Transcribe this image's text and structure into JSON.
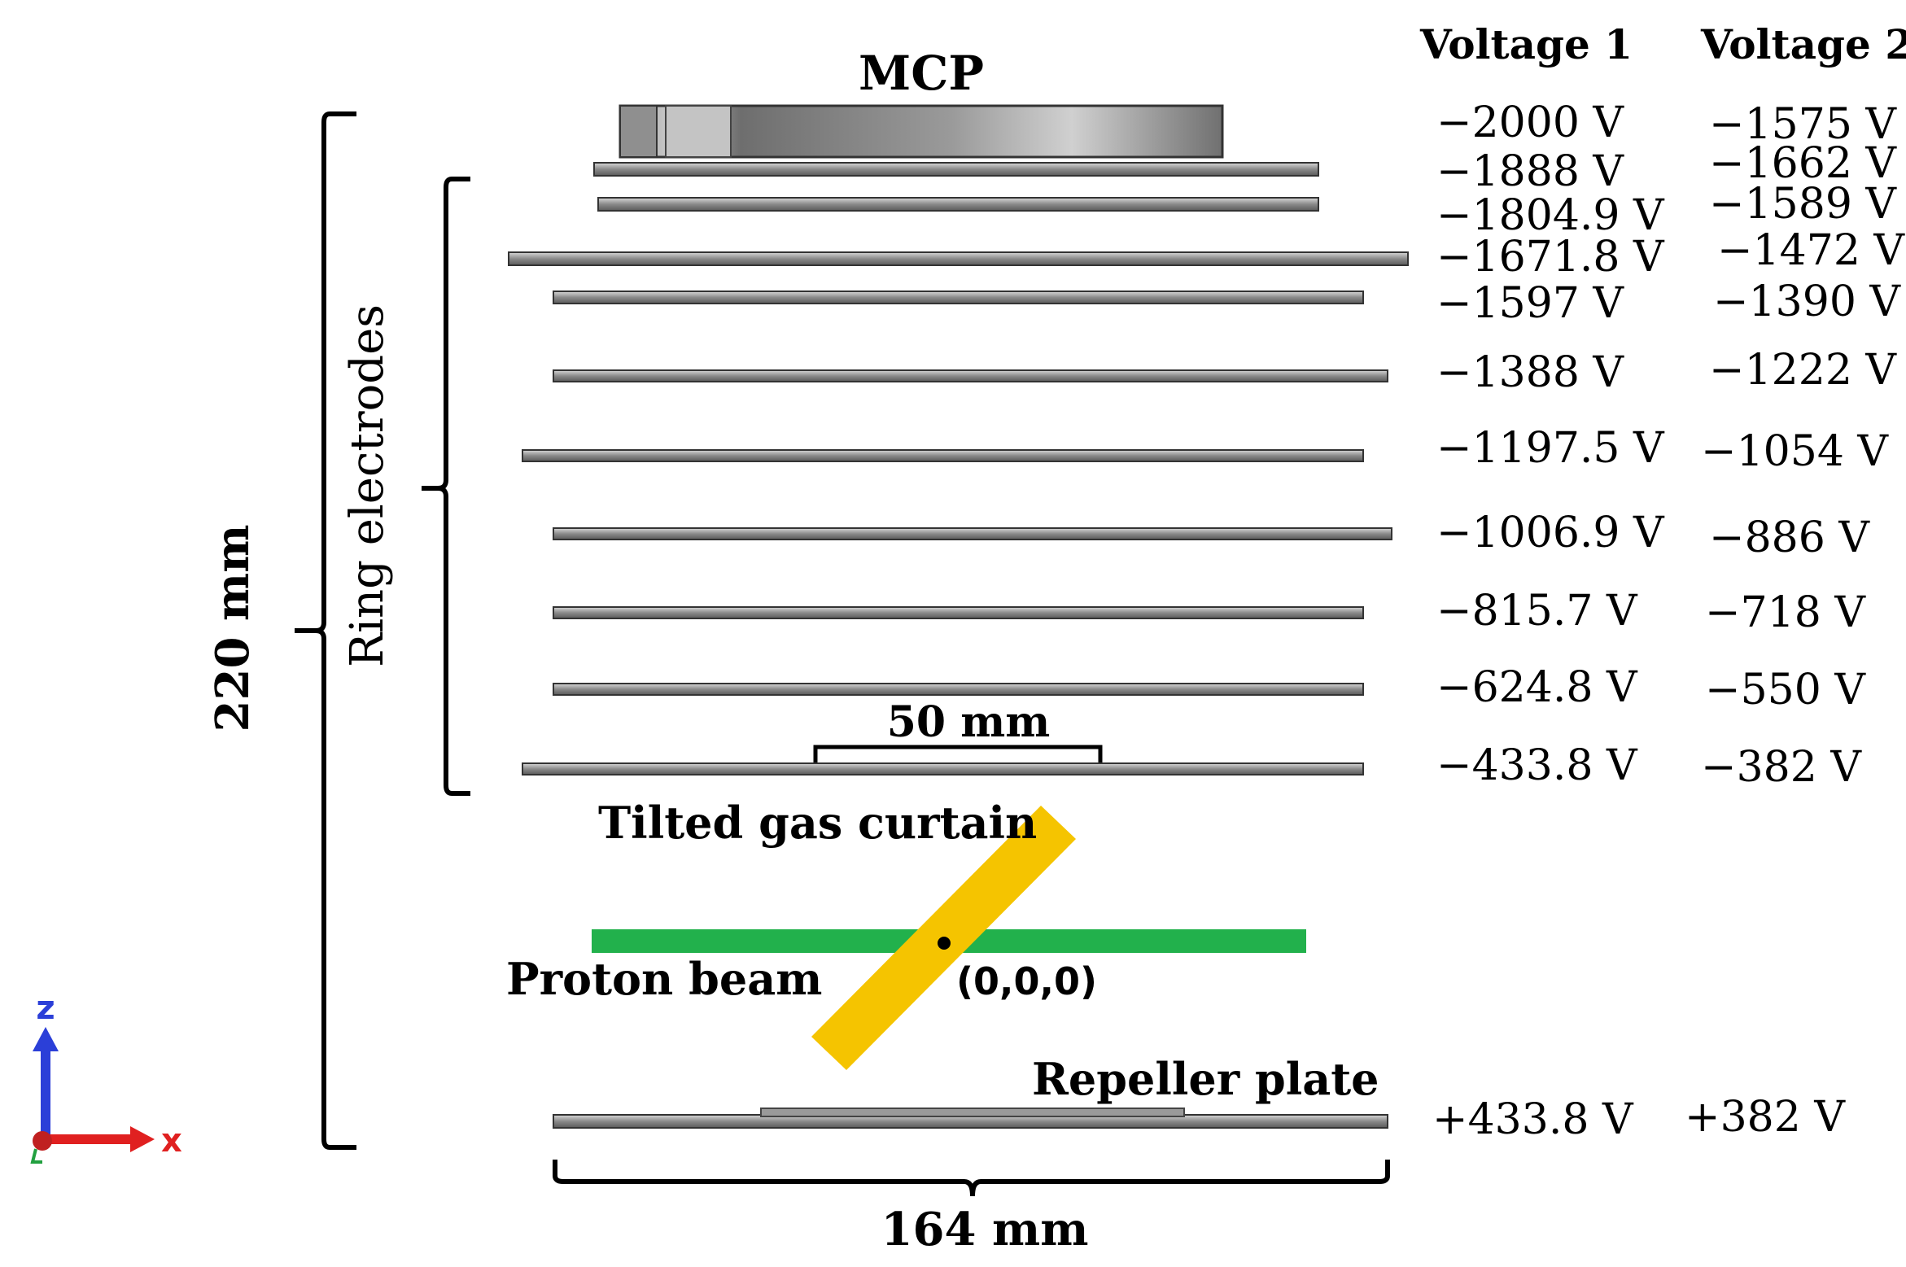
{
  "labels": {
    "mcp": "MCP",
    "ring_electrodes": "Ring electrodes",
    "height": "220 mm",
    "width": "164 mm",
    "inner_scale": "50 mm",
    "gas_curtain": "Tilted gas curtain",
    "proton_beam": "Proton beam",
    "origin": "(0,0,0)",
    "repeller": "Repeller plate"
  },
  "axes": {
    "z": "z",
    "x": "x"
  },
  "columns": {
    "v1_header": "Voltage 1",
    "v2_header": "Voltage 2"
  },
  "voltages": [
    {
      "v1": "−2000 V",
      "v2": "−1575 V"
    },
    {
      "v1": "−1888 V",
      "v2": "−1662 V"
    },
    {
      "v1": "−1804.9 V",
      "v2": "−1589 V"
    },
    {
      "v1": "−1671.8 V",
      "v2": "−1472 V"
    },
    {
      "v1": "−1597 V",
      "v2": "−1390 V"
    },
    {
      "v1": "−1388 V",
      "v2": "−1222 V"
    },
    {
      "v1": "−1197.5 V",
      "v2": "−1054 V"
    },
    {
      "v1": "−1006.9 V",
      "v2": "−886 V"
    },
    {
      "v1": "−815.7 V",
      "v2": "−718 V"
    },
    {
      "v1": "−624.8 V",
      "v2": "−550 V"
    },
    {
      "v1": "−433.8 V",
      "v2": "−382 V"
    },
    {
      "v1": "+433.8 V",
      "v2": "+382 V"
    }
  ],
  "colors": {
    "proton_beam": "#22b14c",
    "gas_curtain": "#f5c400",
    "metal": "#8c8c8c",
    "axis_z": "#2b3fd8",
    "axis_x": "#e02020"
  }
}
